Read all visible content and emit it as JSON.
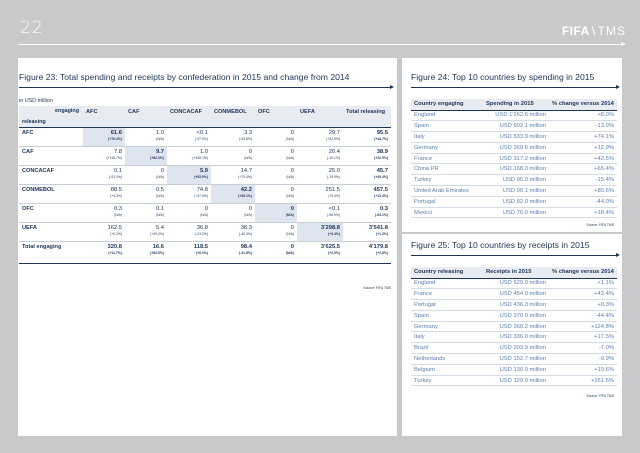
{
  "page": {
    "number": "22",
    "logo_fifa": "FIFA",
    "logo_tms": "TMS"
  },
  "fig23": {
    "title": "Figure 23: Total spending and receipts by confederation in 2015 and change from 2014",
    "unit": "in USD million",
    "corner_engaging": "engaging",
    "corner_releasing": "releasing",
    "columns": [
      "AFC",
      "CAF",
      "CONCACAF",
      "CONMEBOL",
      "OFC",
      "UEFA",
      "Total releasing"
    ],
    "rows": [
      {
        "label": "AFC",
        "cells": [
          [
            "61.6",
            "(+76.4%)"
          ],
          [
            "1.0",
            "(N/A)"
          ],
          [
            "<0.1",
            "(-97.5%)"
          ],
          [
            "3.3",
            "(-93.6%)"
          ],
          [
            "0",
            "(N/A)"
          ],
          [
            "29.7",
            "(+32.9%)"
          ],
          [
            "95.5",
            "(+44.7%)"
          ]
        ]
      },
      {
        "label": "CAF",
        "cells": [
          [
            "7.8",
            "(+118.7%)"
          ],
          [
            "9.7",
            "(+82.0%)"
          ],
          [
            "1.0",
            "(+408.1%)"
          ],
          [
            "0",
            "(N/A)"
          ],
          [
            "0",
            "(N/A)"
          ],
          [
            "20.4",
            "(-10.1%)"
          ],
          [
            "38.9",
            "(+22.5%)"
          ]
        ]
      },
      {
        "label": "CONCACAF",
        "cells": [
          [
            "0.1",
            "(-91.1%)"
          ],
          [
            "0",
            "(N/A)"
          ],
          [
            "5.9",
            "(+53.9%)"
          ],
          [
            "14.7",
            "(+70.4%)"
          ],
          [
            "0",
            "(N/A)"
          ],
          [
            "25.0",
            "(-19.9%)"
          ],
          [
            "45.7",
            "(+40.4%)"
          ]
        ]
      },
      {
        "label": "CONMEBOL",
        "cells": [
          [
            "88.5",
            "(+4.3%)"
          ],
          [
            "0.5",
            "(N/A)"
          ],
          [
            "74.8",
            "(+37.5%)"
          ],
          [
            "42.2",
            "(+26.1%)"
          ],
          [
            "0",
            "(N/A)"
          ],
          [
            "251.5",
            "(+5.4%)"
          ],
          [
            "457.5",
            "(+13.4%)"
          ]
        ]
      },
      {
        "label": "OFC",
        "cells": [
          [
            "0.3",
            "(N/A)"
          ],
          [
            "0.1",
            "(N/A)"
          ],
          [
            "0",
            "(N/A)"
          ],
          [
            "0",
            "(N/A)"
          ],
          [
            "0",
            "(N/A)"
          ],
          [
            "<0.1",
            "(-96.9%)"
          ],
          [
            "0.3",
            "(-94.1%)"
          ]
        ]
      },
      {
        "label": "UEFA",
        "cells": [
          [
            "162.5",
            "(+0.2%)"
          ],
          [
            "5.4",
            "(+40.2%)"
          ],
          [
            "36.8",
            "(-23.2%)"
          ],
          [
            "38.3",
            "(-40.3%)"
          ],
          [
            "0",
            "(N/A)"
          ],
          [
            "3'298.8",
            "(+3.4%)"
          ],
          [
            "3'541.8",
            "(+1.2%)"
          ]
        ]
      }
    ],
    "total": {
      "label": "Total engaging",
      "cells": [
        [
          "320.8",
          "(+11.7%)"
        ],
        [
          "16.6",
          "(+84.5%)"
        ],
        [
          "118.5",
          "(+8.0%)"
        ],
        [
          "98.4",
          "(-31.8%)"
        ],
        [
          "0",
          "(N/A)"
        ],
        [
          "3'625.5",
          "(+2.9%)"
        ],
        [
          "4'179.8",
          "(+2.6%)"
        ]
      ]
    },
    "source": "Source: FIFA TMS"
  },
  "fig24": {
    "title": "Figure 24: Top 10 countries by spending in 2015",
    "headers": [
      "Country engaging",
      "Spending in 2015",
      "% change versus 2014"
    ],
    "rows": [
      [
        "England",
        "USD 1'262.6 million",
        "+8.0%"
      ],
      [
        "Spain",
        "USD 602.1 million",
        "-13.9%"
      ],
      [
        "Italy",
        "USD 533.9 million",
        "+74.1%"
      ],
      [
        "Germany",
        "USD 369.6 million",
        "+12.9%"
      ],
      [
        "France",
        "USD 317.2 million",
        "+42.5%"
      ],
      [
        "China PR",
        "USD 168.3 million",
        "+65.4%"
      ],
      [
        "Turkey",
        "USD 95.0 million",
        "-15.4%"
      ],
      [
        "United Arab Emirates",
        "USD 90.1 million",
        "+80.6%"
      ],
      [
        "Portugal",
        "USD 82.0 million",
        "-44.0%"
      ],
      [
        "Mexico",
        "USD 76.0 million",
        "+18.4%"
      ]
    ],
    "source": "Source: FIFA TMS"
  },
  "fig25": {
    "title": "Figure 25: Top 10 countries by receipts in 2015",
    "headers": [
      "Country releasing",
      "Receipts in 2015",
      "% change versus 2014"
    ],
    "rows": [
      [
        "England",
        "USD 529.0 million",
        "+1.1%"
      ],
      [
        "France",
        "USD 454.0 million",
        "+43.4%"
      ],
      [
        "Portugal",
        "USD 436.3 million",
        "+0.3%"
      ],
      [
        "Spain",
        "USD 370.9 million",
        "-44.4%"
      ],
      [
        "Germany",
        "USD 360.2 million",
        "+124.8%"
      ],
      [
        "Italy",
        "USD 336.0 million",
        "+17.5%"
      ],
      [
        "Brazil",
        "USD 203.9 million",
        "-7.0%"
      ],
      [
        "Netherlands",
        "USD 152.7 million",
        "-9.9%"
      ],
      [
        "Belgium",
        "USD 130.9 million",
        "+19.6%"
      ],
      [
        "Turkey",
        "USD 129.0 million",
        "+161.5%"
      ]
    ],
    "source": "Source: FIFA TMS"
  }
}
